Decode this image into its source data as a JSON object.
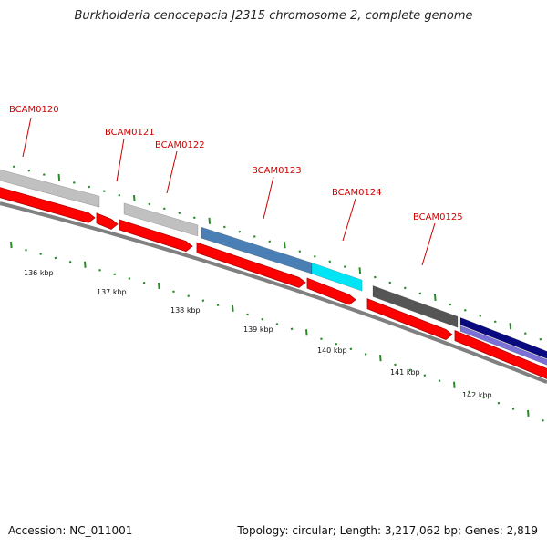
{
  "title": "Burkholderia cenocepacia J2315 chromosome 2, complete genome",
  "footer": {
    "accession": "Accession: NC_011001",
    "summary": "Topology: circular; Length: 3,217,062 bp; Genes: 2,819"
  },
  "genes": [
    {
      "name": "BCAM0120"
    },
    {
      "name": "BCAM0121"
    },
    {
      "name": "BCAM0122"
    },
    {
      "name": "BCAM0123"
    },
    {
      "name": "BCAM0124"
    },
    {
      "name": "BCAM0125"
    }
  ],
  "scale_labels": [
    "136 kbp",
    "137 kbp",
    "138 kbp",
    "139 kbp",
    "140 kbp",
    "141 kbp",
    "142 kbp"
  ],
  "colors": {
    "gene_label": "#cc0000",
    "cds": "#ff0000",
    "backbone": "#808080",
    "tick": "#2a8a2a",
    "feature_gray": "#c0c0c0",
    "feature_steelblue": "#4a7fb5",
    "feature_cyan": "#00e5f5",
    "feature_darkgray": "#555555",
    "feature_navy": "#0a0a80",
    "feature_slateblue": "#7a70d8"
  }
}
